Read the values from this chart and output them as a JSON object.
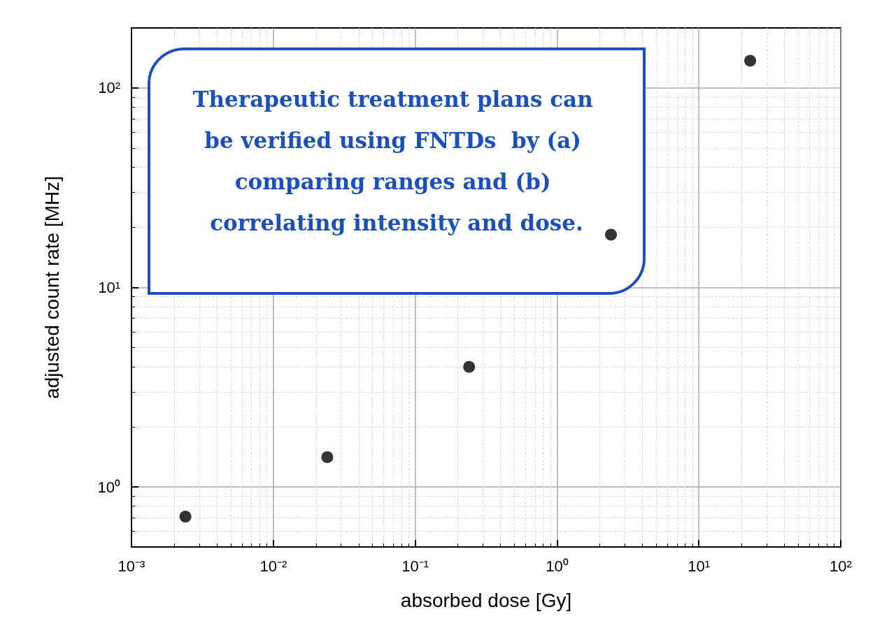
{
  "chart_data": {
    "type": "scatter",
    "xlabel": "absorbed dose [Gy]",
    "ylabel": "adjusted count rate [MHz]",
    "annotations": [
      "Therapeutic treatment plans can be verified using FNTDs  by (a) comparing ranges and (b) correlating intensity and dose."
    ],
    "x": [
      0.0024,
      0.024,
      0.24,
      2.4,
      23
    ],
    "series": [
      {
        "color": "#000000",
        "values": [
          0.71,
          1.41,
          4.0,
          18.4,
          137
        ]
      }
    ],
    "log": "xy",
    "marker": "circle",
    "grid": true,
    "xlim": [
      0.001,
      100
    ],
    "xticks": [
      {
        "value": 0.001,
        "label": "10⁻³"
      },
      {
        "value": 0.01,
        "label": "10⁻²"
      },
      {
        "value": 0.1,
        "label": "10⁻¹"
      },
      {
        "value": 1,
        "label": "10⁰"
      },
      {
        "value": 10,
        "label": "10¹"
      },
      {
        "value": 100,
        "label": "10²"
      }
    ],
    "ylim": [
      0.5,
      200
    ],
    "yticks": [
      {
        "value": 1,
        "label": "10⁰"
      },
      {
        "value": 10,
        "label": "10¹"
      },
      {
        "value": 100,
        "label": "10²"
      }
    ]
  }
}
